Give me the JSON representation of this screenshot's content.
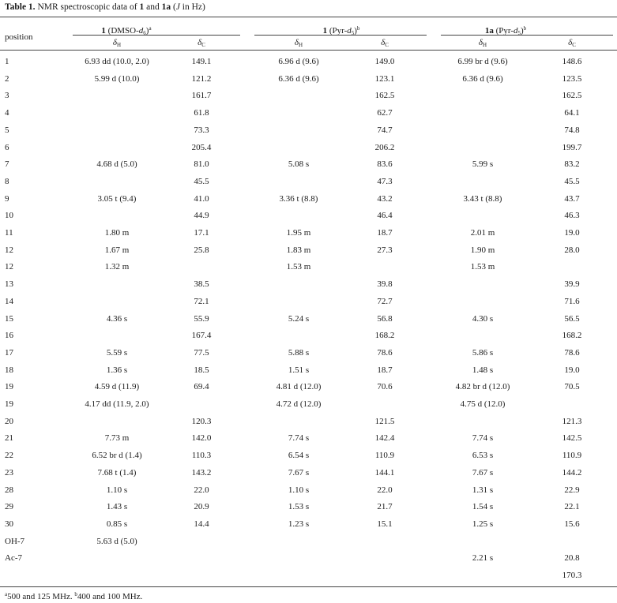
{
  "caption": {
    "prefix": "Table 1.",
    "text_a": " NMR spectroscopic data of ",
    "c1": "1",
    "and": " and ",
    "c2": "1a",
    "text_b": " (",
    "j": "J",
    "text_c": " in Hz)"
  },
  "headers": {
    "position": "position",
    "groups": [
      {
        "bold": "1",
        "text": " (DMSO-",
        "ital": "d",
        "subscr": "6",
        "close": ")",
        "sup": "a"
      },
      {
        "bold": "1",
        "text": " (Pyr-",
        "ital": "d",
        "subscr": "5",
        "close": ")",
        "sup": "b"
      },
      {
        "bold": "1a",
        "text": " (Pyr-",
        "ital": "d",
        "subscr": "5",
        "close": ")",
        "sup": "b"
      }
    ],
    "sub_h": "δ",
    "sub_h_idx": "H",
    "sub_c": "δ",
    "sub_c_idx": "C"
  },
  "rows": [
    {
      "pos": "1",
      "h1": "6.93 dd (10.0, 2.0)",
      "c1": "149.1",
      "h2": "6.96 d (9.6)",
      "c2": "149.0",
      "h3": "6.99 br d (9.6)",
      "c3": "148.6"
    },
    {
      "pos": "2",
      "h1": "5.99 d (10.0)",
      "c1": "121.2",
      "h2": "6.36 d (9.6)",
      "c2": "123.1",
      "h3": "6.36 d (9.6)",
      "c3": "123.5"
    },
    {
      "pos": "3",
      "h1": "",
      "c1": "161.7",
      "h2": "",
      "c2": "162.5",
      "h3": "",
      "c3": "162.5"
    },
    {
      "pos": "4",
      "h1": "",
      "c1": "61.8",
      "h2": "",
      "c2": "62.7",
      "h3": "",
      "c3": "64.1"
    },
    {
      "pos": "5",
      "h1": "",
      "c1": "73.3",
      "h2": "",
      "c2": "74.7",
      "h3": "",
      "c3": "74.8"
    },
    {
      "pos": "6",
      "h1": "",
      "c1": "205.4",
      "h2": "",
      "c2": "206.2",
      "h3": "",
      "c3": "199.7"
    },
    {
      "pos": "7",
      "h1": "4.68 d (5.0)",
      "c1": "81.0",
      "h2": "5.08 s",
      "c2": "83.6",
      "h3": "5.99 s",
      "c3": "83.2"
    },
    {
      "pos": "8",
      "h1": "",
      "c1": "45.5",
      "h2": "",
      "c2": "47.3",
      "h3": "",
      "c3": "45.5"
    },
    {
      "pos": "9",
      "h1": "3.05 t (9.4)",
      "c1": "41.0",
      "h2": "3.36 t (8.8)",
      "c2": "43.2",
      "h3": "3.43 t (8.8)",
      "c3": "43.7"
    },
    {
      "pos": "10",
      "h1": "",
      "c1": "44.9",
      "h2": "",
      "c2": "46.4",
      "h3": "",
      "c3": "46.3"
    },
    {
      "pos": "11",
      "h1": "1.80 m",
      "c1": "17.1",
      "h2": "1.95 m",
      "c2": "18.7",
      "h3": "2.01 m",
      "c3": "19.0"
    },
    {
      "pos": "12",
      "h1": "1.67 m",
      "c1": "25.8",
      "h2": "1.83 m",
      "c2": "27.3",
      "h3": "1.90 m",
      "c3": "28.0"
    },
    {
      "pos": "12",
      "h1": "1.32 m",
      "c1": "",
      "h2": "1.53 m",
      "c2": "",
      "h3": "1.53 m",
      "c3": ""
    },
    {
      "pos": "13",
      "h1": "",
      "c1": "38.5",
      "h2": "",
      "c2": "39.8",
      "h3": "",
      "c3": "39.9"
    },
    {
      "pos": "14",
      "h1": "",
      "c1": "72.1",
      "h2": "",
      "c2": "72.7",
      "h3": "",
      "c3": "71.6"
    },
    {
      "pos": "15",
      "h1": "4.36 s",
      "c1": "55.9",
      "h2": "5.24 s",
      "c2": "56.8",
      "h3": "4.30 s",
      "c3": "56.5"
    },
    {
      "pos": "16",
      "h1": "",
      "c1": "167.4",
      "h2": "",
      "c2": "168.2",
      "h3": "",
      "c3": "168.2"
    },
    {
      "pos": "17",
      "h1": "5.59 s",
      "c1": "77.5",
      "h2": "5.88 s",
      "c2": "78.6",
      "h3": "5.86 s",
      "c3": "78.6"
    },
    {
      "pos": "18",
      "h1": "1.36 s",
      "c1": "18.5",
      "h2": "1.51 s",
      "c2": "18.7",
      "h3": "1.48 s",
      "c3": "19.0"
    },
    {
      "pos": "19",
      "h1": "4.59 d (11.9)",
      "c1": "69.4",
      "h2": "4.81 d (12.0)",
      "c2": "70.6",
      "h3": "4.82 br d (12.0)",
      "c3": "70.5"
    },
    {
      "pos": "19",
      "h1": "4.17 dd (11.9, 2.0)",
      "c1": "",
      "h2": "4.72 d (12.0)",
      "c2": "",
      "h3": "4.75 d (12.0)",
      "c3": ""
    },
    {
      "pos": "20",
      "h1": "",
      "c1": "120.3",
      "h2": "",
      "c2": "121.5",
      "h3": "",
      "c3": "121.3"
    },
    {
      "pos": "21",
      "h1": "7.73 m",
      "c1": "142.0",
      "h2": "7.74 s",
      "c2": "142.4",
      "h3": "7.74 s",
      "c3": "142.5"
    },
    {
      "pos": "22",
      "h1": "6.52 br d (1.4)",
      "c1": "110.3",
      "h2": "6.54 s",
      "c2": "110.9",
      "h3": "6.53 s",
      "c3": "110.9"
    },
    {
      "pos": "23",
      "h1": "7.68 t (1.4)",
      "c1": "143.2",
      "h2": "7.67 s",
      "c2": "144.1",
      "h3": "7.67 s",
      "c3": "144.2"
    },
    {
      "pos": "28",
      "h1": "1.10 s",
      "c1": "22.0",
      "h2": "1.10 s",
      "c2": "22.0",
      "h3": "1.31 s",
      "c3": "22.9"
    },
    {
      "pos": "29",
      "h1": "1.43 s",
      "c1": "20.9",
      "h2": "1.53 s",
      "c2": "21.7",
      "h3": "1.54 s",
      "c3": "22.1"
    },
    {
      "pos": "30",
      "h1": "0.85 s",
      "c1": "14.4",
      "h2": "1.23 s",
      "c2": "15.1",
      "h3": "1.25 s",
      "c3": "15.6"
    },
    {
      "pos": "OH-7",
      "h1": "5.63 d (5.0)",
      "c1": "",
      "h2": "",
      "c2": "",
      "h3": "",
      "c3": ""
    },
    {
      "pos": "Ac-7",
      "h1": "",
      "c1": "",
      "h2": "",
      "c2": "",
      "h3": "2.21 s",
      "c3": "20.8"
    },
    {
      "pos": "",
      "h1": "",
      "c1": "",
      "h2": "",
      "c2": "",
      "h3": "",
      "c3": "170.3"
    }
  ],
  "footnote": {
    "a_mark": "a",
    "a_text": "500 and 125 MHz. ",
    "b_mark": "b",
    "b_text": "400 and 100 MHz."
  }
}
